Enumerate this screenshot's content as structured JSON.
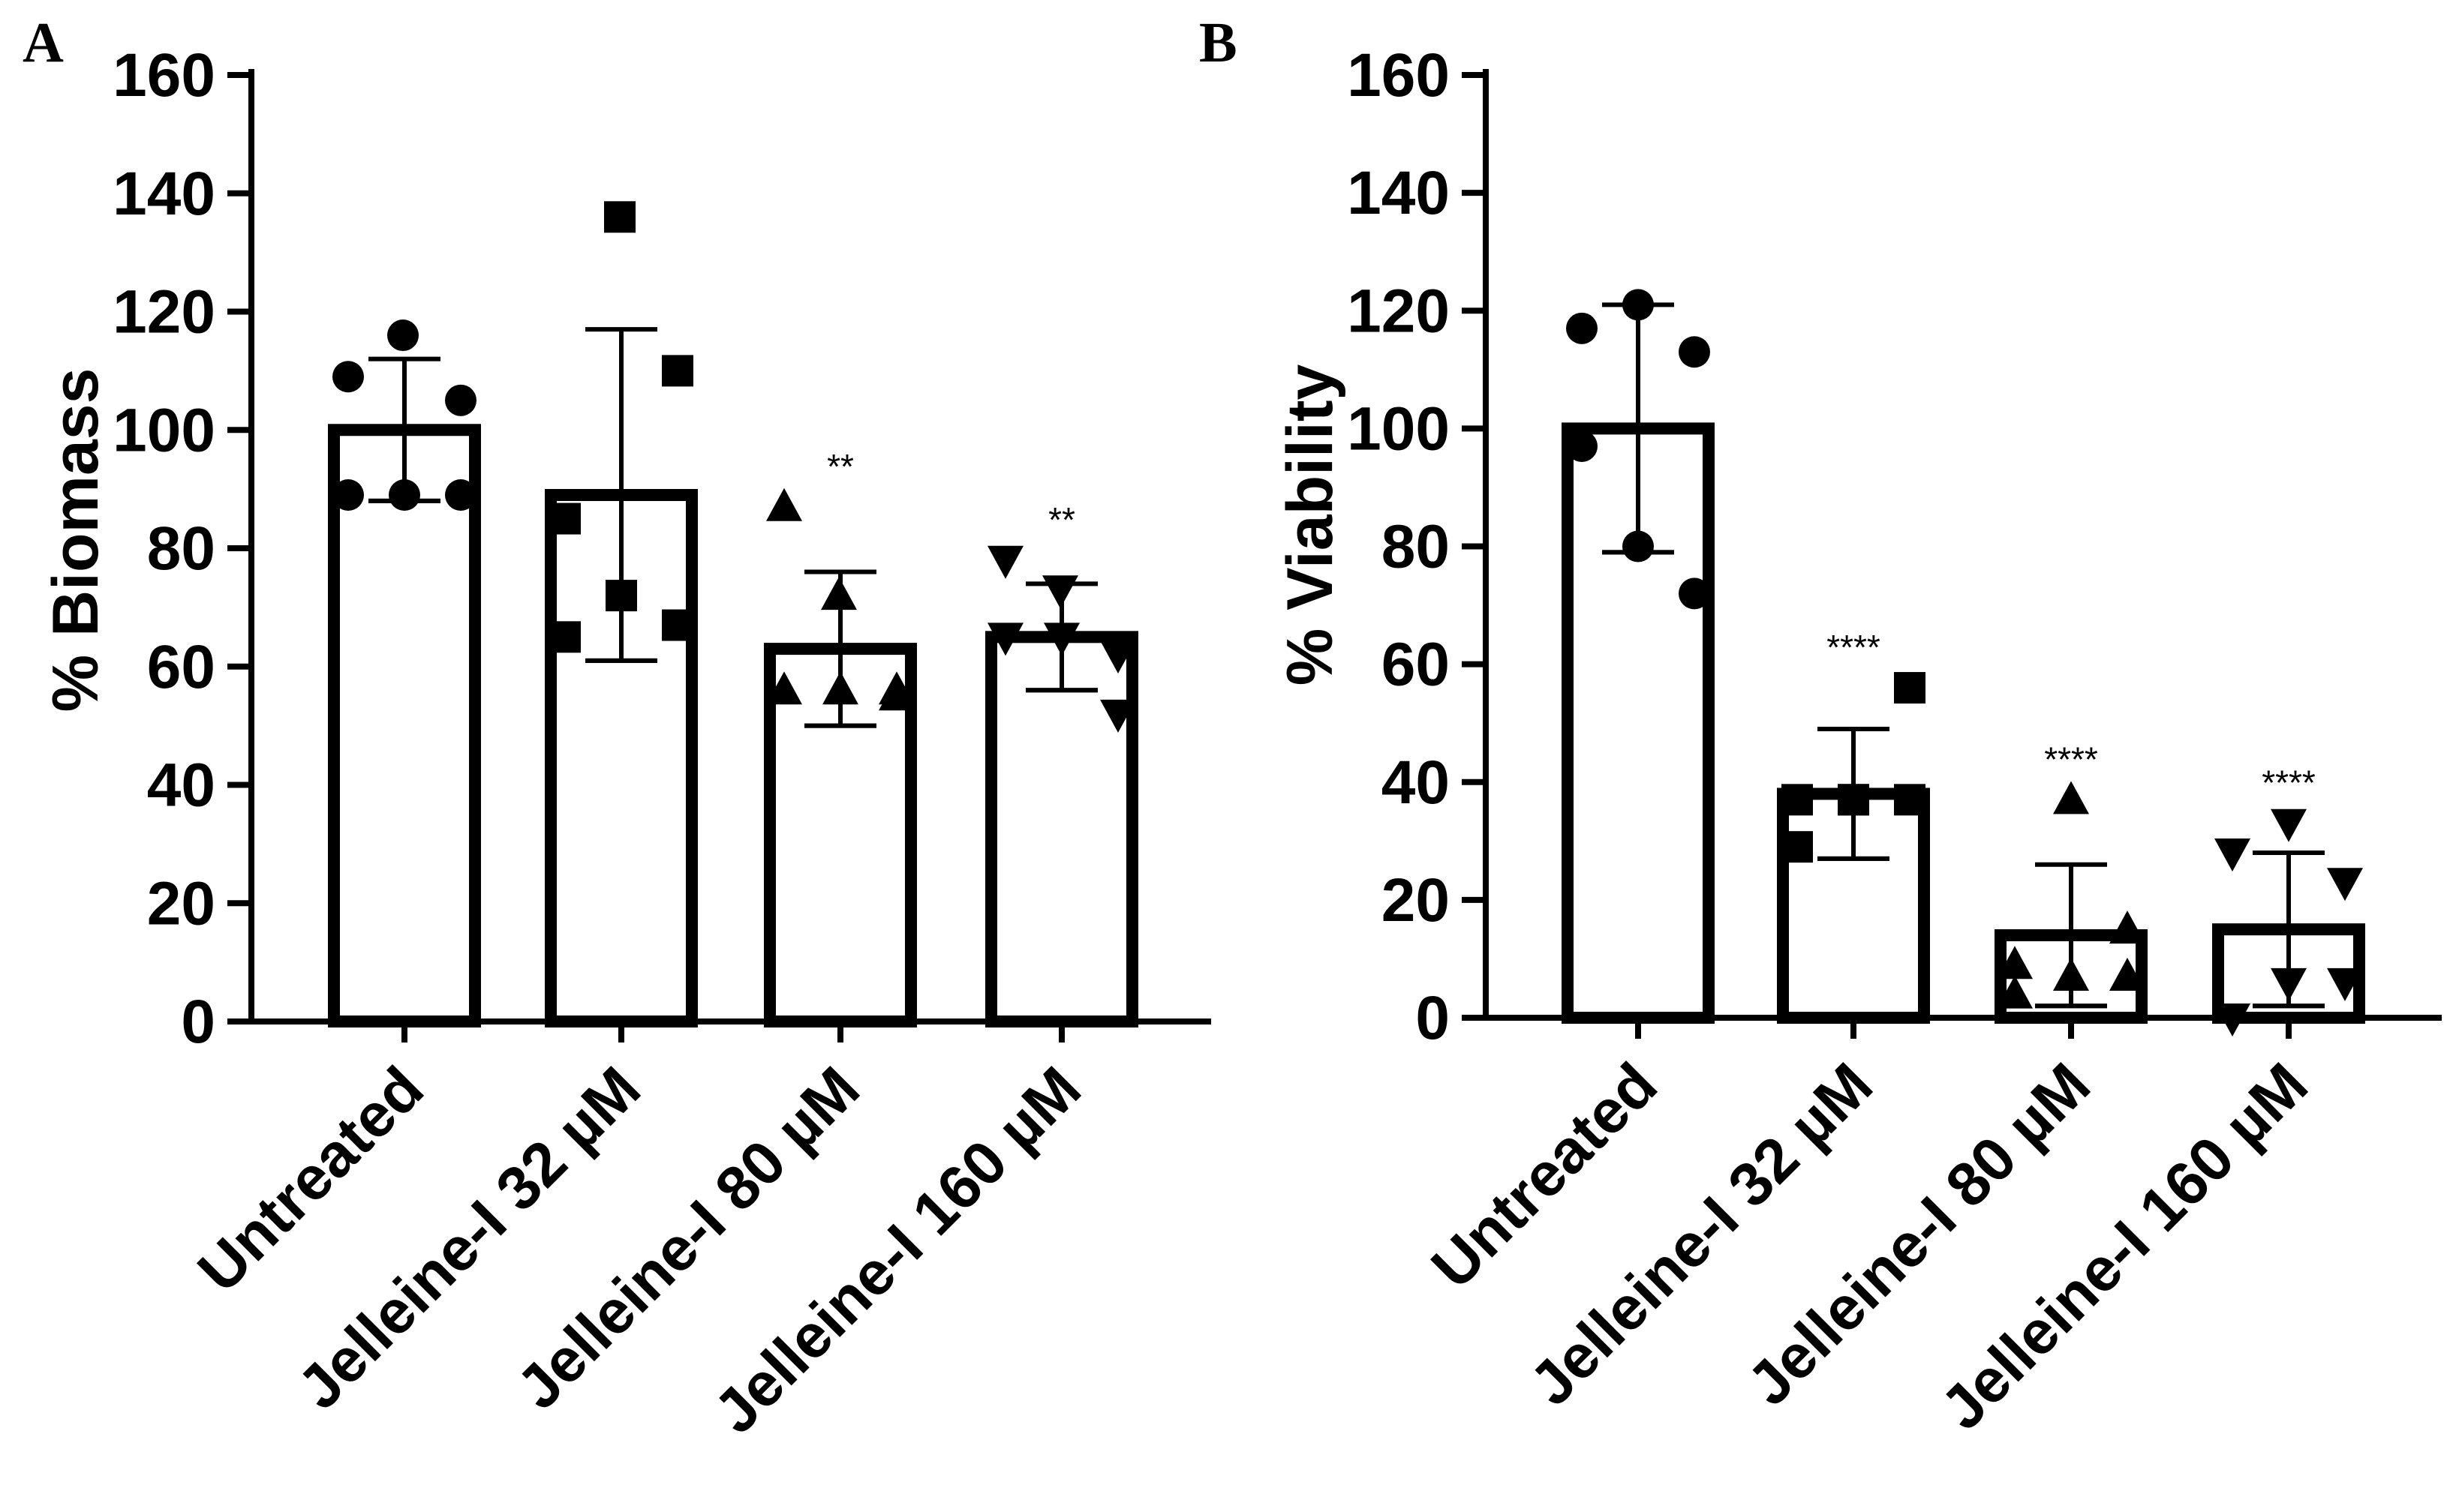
{
  "chart_data": [
    {
      "panel": "A",
      "type": "bar",
      "ylabel": "% Biomass",
      "ylim": [
        0,
        160
      ],
      "yticks": [
        0,
        20,
        40,
        60,
        80,
        100,
        120,
        140,
        160
      ],
      "categories": [
        "Untreated",
        "Jelleine-I 32 µM",
        "Jelleine-I 80 µM",
        "Jelleine-I 160 µM"
      ],
      "means": [
        100,
        89,
        63,
        65
      ],
      "sd": [
        12,
        28,
        13,
        9
      ],
      "significance": [
        "",
        "",
        "**",
        "**"
      ],
      "markers": [
        "circle",
        "square",
        "triangle-up",
        "triangle-down"
      ],
      "points": [
        [
          109,
          116,
          105,
          89,
          89,
          89
        ],
        [
          65,
          136,
          110,
          85,
          72,
          67
        ],
        [
          87,
          72,
          56,
          56,
          56,
          55
        ],
        [
          78,
          73,
          62,
          65,
          65,
          52
        ]
      ]
    },
    {
      "panel": "B",
      "type": "bar",
      "ylabel": "% Viability",
      "ylim": [
        0,
        160
      ],
      "yticks": [
        0,
        20,
        40,
        60,
        80,
        100,
        120,
        140,
        160
      ],
      "categories": [
        "Untreated",
        "Jelleine-I 32 µM",
        "Jelleine-I 80 µM",
        "Jelleine-I 160 µM"
      ],
      "means": [
        100,
        38,
        14,
        15
      ],
      "sd": [
        21,
        11,
        12,
        13
      ],
      "significance": [
        "",
        "****",
        "****",
        "****"
      ],
      "markers": [
        "circle",
        "square",
        "triangle-up",
        "triangle-down"
      ],
      "points": [
        [
          117,
          121,
          113,
          97,
          80,
          72
        ],
        [
          29,
          37,
          56,
          37,
          37,
          37
        ],
        [
          4,
          37,
          15,
          9,
          7,
          7
        ],
        [
          28,
          33,
          23,
          0,
          6,
          6
        ]
      ]
    }
  ]
}
